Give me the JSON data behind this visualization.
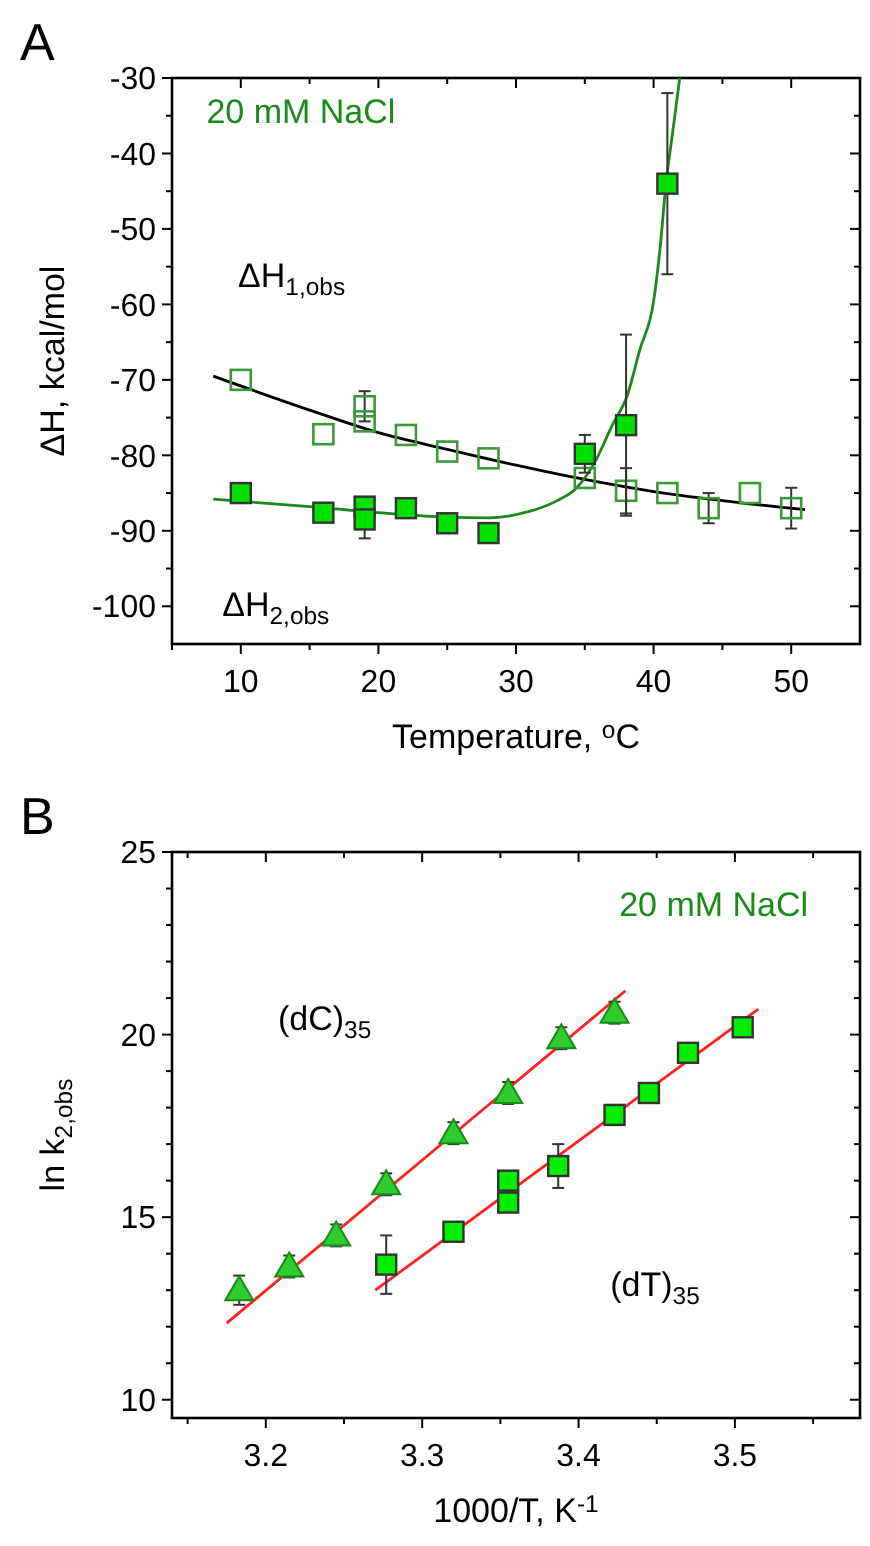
{
  "chart_data": [
    {
      "type": "scatter",
      "title": "A",
      "xlabel": "Temperature, $^{o}$C",
      "ylabel": "ΔH, kcal/mol",
      "xlim": [
        5,
        55
      ],
      "ylim": [
        -105,
        -30
      ],
      "xticks": [
        {
          "value": 5,
          "label": null
        },
        10,
        {
          "value": 15,
          "label": null
        },
        20,
        {
          "value": 25,
          "label": null
        },
        30,
        {
          "value": 35,
          "label": null
        },
        40,
        {
          "value": 45,
          "label": null
        },
        50
      ],
      "yticks": [
        -100,
        {
          "value": -95,
          "label": null
        },
        -90,
        {
          "value": -85,
          "label": null
        },
        -80,
        {
          "value": -75,
          "label": null
        },
        -70,
        {
          "value": -65,
          "label": null
        },
        -60,
        {
          "value": -55,
          "label": null
        },
        -50,
        {
          "value": -45,
          "label": null
        },
        -40,
        {
          "value": -35,
          "label": null
        },
        -30
      ],
      "grid": false,
      "series": [
        {
          "type": "line",
          "color": "#000000",
          "line_style": "solid",
          "x": [
            8,
            15,
            20,
            25,
            30,
            35,
            40,
            45,
            51
          ],
          "values": [
            -69.5,
            -74,
            -77,
            -79.2,
            -81.3,
            -83.2,
            -84.8,
            -86,
            -87.2
          ]
        },
        {
          "type": "line",
          "color": "#1a8a1a",
          "line_style": "solid",
          "x": [
            8,
            15,
            20,
            25,
            28,
            30.4,
            33,
            34.3,
            35.7,
            37,
            38.1,
            39,
            40,
            40.5,
            40.9,
            41.4,
            41.9
          ],
          "values": [
            -85.8,
            -86.8,
            -87.6,
            -88.2,
            -88.3,
            -87.7,
            -86,
            -84.5,
            -81,
            -76,
            -72,
            -66,
            -59.6,
            -52,
            -44,
            -37,
            -30
          ]
        },
        {
          "color": "#3a9a3a",
          "marker": "square-open",
          "x": [
            10,
            16,
            19,
            19,
            22,
            25,
            28,
            35,
            38,
            41,
            44,
            47,
            50
          ],
          "values": [
            -70,
            -77.2,
            -73.5,
            -75.5,
            -77.3,
            -79.5,
            -80.4,
            -83,
            -84.7,
            -85,
            -87,
            -85,
            -87
          ],
          "errors": [
            null,
            null,
            2,
            null,
            null,
            null,
            null,
            null,
            3,
            null,
            2,
            null,
            2.7
          ]
        },
        {
          "color": "#00e000",
          "marker": "square",
          "x": [
            10,
            16,
            19,
            19,
            22,
            25,
            28,
            35,
            38,
            41
          ],
          "values": [
            -85,
            -87.6,
            -86.8,
            -88.5,
            -87,
            -89,
            -90.3,
            -79.8,
            -76,
            -44
          ],
          "errors": [
            null,
            null,
            null,
            2.5,
            null,
            null,
            null,
            2.5,
            12,
            12
          ]
        }
      ],
      "annotations": [
        "20 mM NaCl",
        "ΔH$_{1,obs}$",
        "ΔH$_{2,obs}$"
      ]
    },
    {
      "type": "scatter",
      "title": "B",
      "xlabel": "1000/T, K$^{-1}$",
      "ylabel": "ln k$_{2,obs}$",
      "xlim": [
        3.14,
        3.58
      ],
      "ylim": [
        9.5,
        25
      ],
      "xticks": [
        {
          "value": 3.15,
          "label": null
        },
        {
          "value": 3.2,
          "label": "3.2"
        },
        {
          "value": 3.25,
          "label": null
        },
        {
          "value": 3.3,
          "label": "3.3"
        },
        {
          "value": 3.35,
          "label": null
        },
        {
          "value": 3.4,
          "label": "3.4"
        },
        {
          "value": 3.45,
          "label": null
        },
        {
          "value": 3.5,
          "label": "3.5"
        },
        {
          "value": 3.55,
          "label": null
        }
      ],
      "yticks": [
        10,
        {
          "value": 11,
          "label": null
        },
        {
          "value": 12,
          "label": null
        },
        {
          "value": 13,
          "label": null
        },
        {
          "value": 14,
          "label": null
        },
        15,
        {
          "value": 16,
          "label": null
        },
        {
          "value": 17,
          "label": null
        },
        {
          "value": 18,
          "label": null
        },
        {
          "value": 19,
          "label": null
        },
        20,
        {
          "value": 21,
          "label": null
        },
        {
          "value": 22,
          "label": null
        },
        {
          "value": 23,
          "label": null
        },
        {
          "value": 24,
          "label": null
        },
        25
      ],
      "grid": false,
      "series": [
        {
          "type": "line",
          "color": "#ff2020",
          "line_style": "solid",
          "x": [
            3.175,
            3.43
          ],
          "values": [
            12.1,
            21.2
          ]
        },
        {
          "type": "line",
          "color": "#ff2020",
          "line_style": "solid",
          "x": [
            3.27,
            3.515
          ],
          "values": [
            13,
            20.7
          ]
        },
        {
          "color": "#2ecc2e",
          "marker": "triangle",
          "x": [
            3.183,
            3.215,
            3.245,
            3.277,
            3.32,
            3.355,
            3.389,
            3.423
          ],
          "values": [
            13,
            13.65,
            14.5,
            15.9,
            17.3,
            18.4,
            19.9,
            20.6
          ],
          "errors": [
            0.4,
            0.3,
            0.3,
            0.3,
            0.3,
            0.3,
            0.3,
            0.3
          ]
        },
        {
          "color": "#00ee00",
          "marker": "square",
          "x": [
            3.277,
            3.32,
            3.355,
            3.355,
            3.387,
            3.423,
            3.445,
            3.47,
            3.505
          ],
          "values": [
            13.7,
            14.6,
            15.4,
            16,
            16.4,
            17.8,
            18.4,
            19.5,
            20.2
          ],
          "errors": [
            0.8,
            0.15,
            0.15,
            0.15,
            0.6,
            0.15,
            0.15,
            null,
            0.15
          ]
        }
      ],
      "annotations": [
        "20 mM NaCl",
        "(dC)$_{35}$",
        "(dT)$_{35}$"
      ]
    }
  ]
}
